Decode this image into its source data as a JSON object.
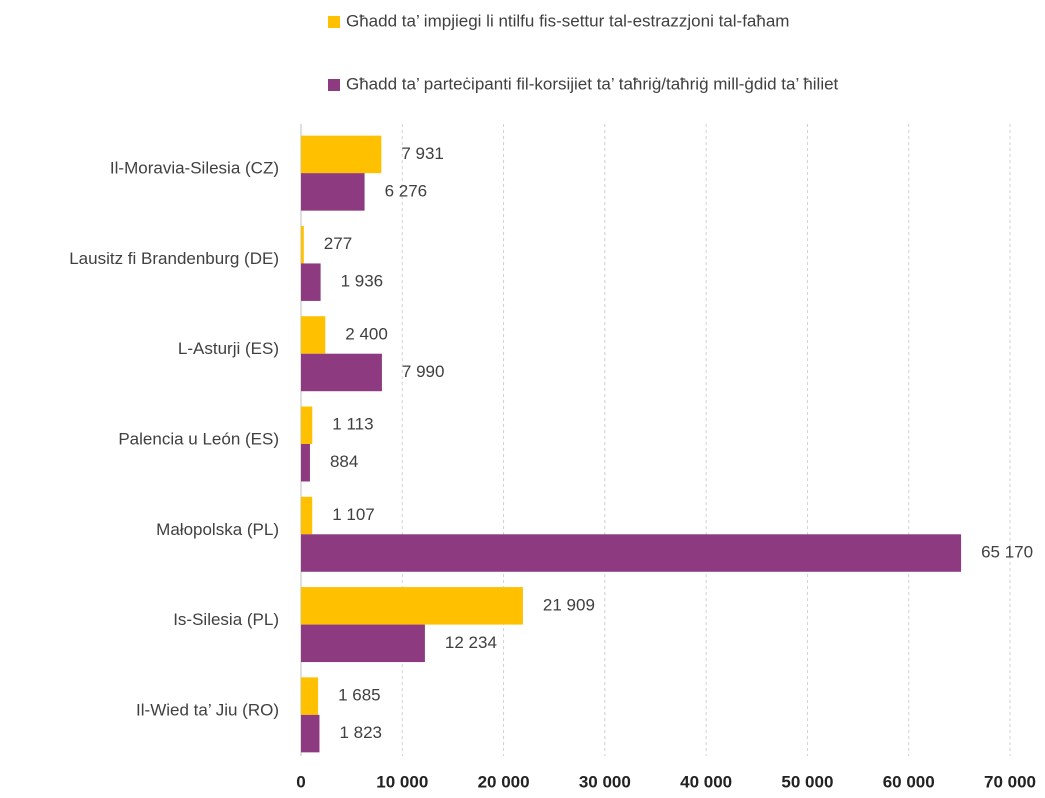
{
  "chart_data": {
    "type": "hbar",
    "categories": [
      "Il-Moravia-Silesia (CZ)",
      "Lausitz fi Brandenburg (DE)",
      "L-Asturji (ES)",
      "Palencia u León (ES)",
      "Małopolska (PL)",
      "Is-Silesia (PL)",
      "Il-Wied ta’ Jiu (RO)"
    ],
    "series": [
      {
        "name": "Għadd ta’ impjiegi li ntilfu fis-settur tal-estrazzjoni tal-faħam",
        "color": "#ffc000",
        "values": [
          7931,
          277,
          2400,
          1113,
          1107,
          21909,
          1685
        ],
        "value_labels": [
          "7 931",
          "277",
          "2 400",
          "1 113",
          "1 107",
          "21 909",
          "1 685"
        ]
      },
      {
        "name": "Għadd ta’ parteċipanti fil-korsijiet ta’ taħriġ/taħriġ mill-ġdid ta’ ħiliet",
        "color": "#8e3a80",
        "values": [
          6276,
          1936,
          7990,
          884,
          65170,
          12234,
          1823
        ],
        "value_labels": [
          "6 276",
          "1 936",
          "7 990",
          "884",
          "65 170",
          "12 234",
          "1 823"
        ]
      }
    ],
    "xlim": [
      0,
      70000
    ],
    "xticks": [
      0,
      {
        "value": 10000,
        "label": "10 000"
      },
      {
        "value": 20000,
        "label": "20 000"
      },
      {
        "value": 30000,
        "label": "30 000"
      },
      {
        "value": 40000,
        "label": "40 000"
      },
      {
        "value": 50000,
        "label": "50 000"
      },
      {
        "value": 60000,
        "label": "60 000"
      },
      {
        "value": 70000,
        "label": "70 000"
      }
    ],
    "grid": true,
    "legend": "top"
  }
}
